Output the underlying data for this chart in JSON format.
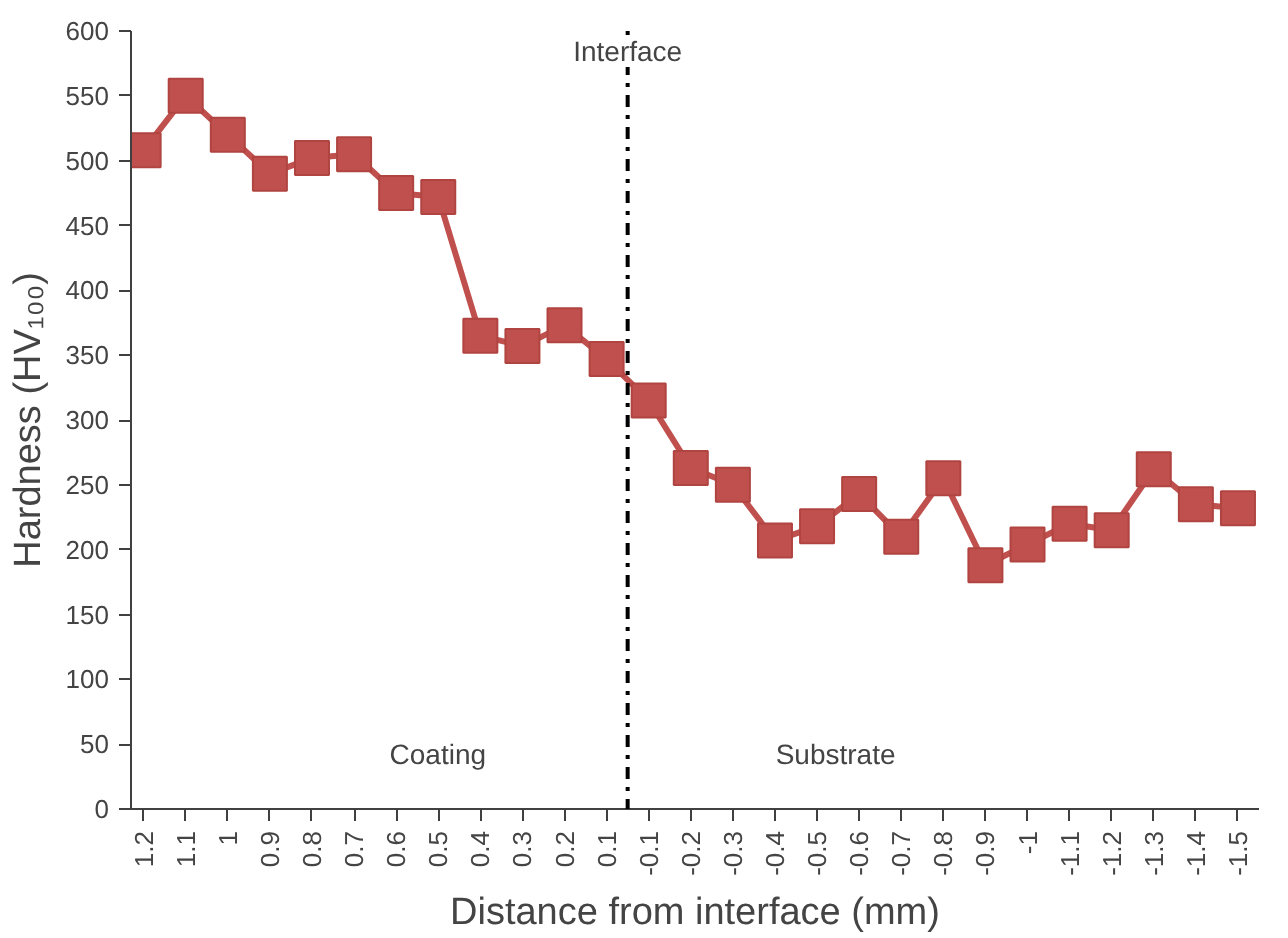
{
  "chart_data": {
    "type": "line",
    "xlabel": "Distance from interface (mm)",
    "ylabel": "Hardness (HV₁₀₀)",
    "categories": [
      "1.2",
      "1.1",
      "1",
      "0.9",
      "0.8",
      "0.7",
      "0.6",
      "0.5",
      "0.4",
      "0.3",
      "0.2",
      "0.1",
      "-0.1",
      "-0.2",
      "-0.3",
      "-0.4",
      "-0.5",
      "-0.6",
      "-0.7",
      "-0.8",
      "-0.9",
      "-1",
      "-1.1",
      "-1.2",
      "-1.3",
      "-1.4",
      "-1.5"
    ],
    "series": [
      {
        "color": "#c0504d",
        "values": [
          508,
          550,
          520,
          490,
          502,
          505,
          475,
          472,
          365,
          357,
          373,
          347,
          315,
          263,
          250,
          207,
          218,
          243,
          210,
          255,
          188,
          204,
          220,
          215,
          262,
          235,
          232
        ]
      }
    ],
    "ylim": [
      0,
      600
    ],
    "yticks": [
      0,
      50,
      100,
      150,
      200,
      250,
      300,
      350,
      400,
      450,
      500,
      550,
      600
    ],
    "grid": false,
    "marker": "square",
    "line_style": "solid",
    "annotations": [
      "Interface",
      "Coating",
      "Substrate"
    ]
  }
}
